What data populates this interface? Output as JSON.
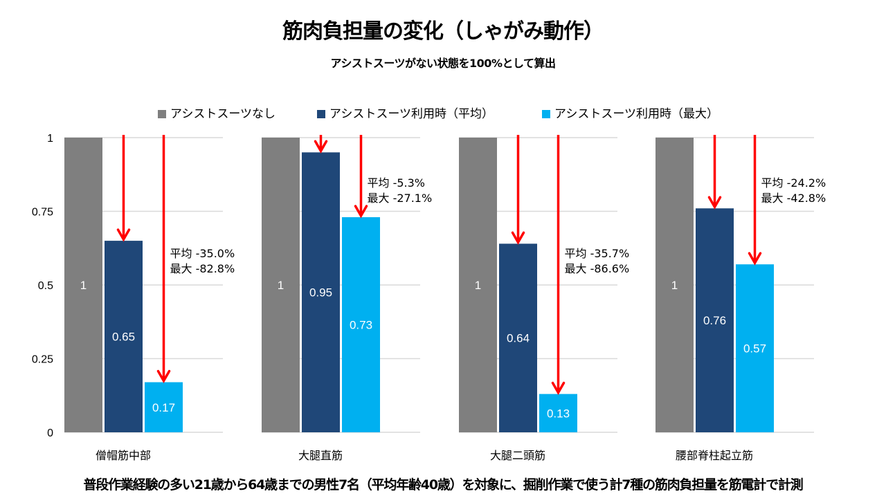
{
  "title": "筋肉負担量の変化（しゃがみ動作）",
  "subtitle": "アシストスーツがない状態を100%として算出",
  "footnote": "普段作業経験の多い21歳から64歳までの男性7名（平均年齢40歳）を対象に、掘削作業で使う計7種の筋肉負担量を筋電計で計測",
  "legend": [
    {
      "label": "アシストスーツなし",
      "color": "#7f7f7f"
    },
    {
      "label": "アシストスーツ利用時（平均）",
      "color": "#1f4778"
    },
    {
      "label": "アシストスーツ利用時（最大）",
      "color": "#00b0f0"
    }
  ],
  "arrow_color": "#ff0000",
  "chart_data": {
    "type": "bar",
    "title": "筋肉負担量の変化（しゃがみ動作）",
    "subtitle": "アシストスーツがない状態を100%として算出",
    "xlabel": "",
    "ylabel": "",
    "ylim": [
      0,
      1
    ],
    "yticks": [
      0,
      0.25,
      0.5,
      0.75,
      1
    ],
    "ytick_labels": [
      "0",
      "0.25",
      "0.5",
      "0.75",
      "1"
    ],
    "grid": true,
    "legend_position": "top",
    "categories": [
      "僧帽筋中部",
      "大腿直筋",
      "大腿二頭筋",
      "腰部脊柱起立筋"
    ],
    "series": [
      {
        "name": "アシストスーツなし",
        "values": [
          1,
          1,
          1,
          1
        ],
        "labels": [
          "1",
          "1",
          "1",
          "1"
        ]
      },
      {
        "name": "アシストスーツ利用時（平均）",
        "values": [
          0.65,
          0.95,
          0.64,
          0.76
        ],
        "labels": [
          "0.65",
          "0.95",
          "0.64",
          "0.76"
        ]
      },
      {
        "name": "アシストスーツ利用時（最大）",
        "values": [
          0.17,
          0.73,
          0.13,
          0.57
        ],
        "labels": [
          "0.17",
          "0.73",
          "0.13",
          "0.57"
        ]
      }
    ],
    "annotations": [
      {
        "category": "僧帽筋中部",
        "avg": "平均 -35.0%",
        "max": "最大 -82.8%"
      },
      {
        "category": "大腿直筋",
        "avg": "平均 -5.3%",
        "max": "最大 -27.1%"
      },
      {
        "category": "大腿二頭筋",
        "avg": "平均 -35.7%",
        "max": "最大 -86.6%"
      },
      {
        "category": "腰部脊柱起立筋",
        "avg": "平均 -24.2%",
        "max": "最大 -42.8%"
      }
    ]
  }
}
